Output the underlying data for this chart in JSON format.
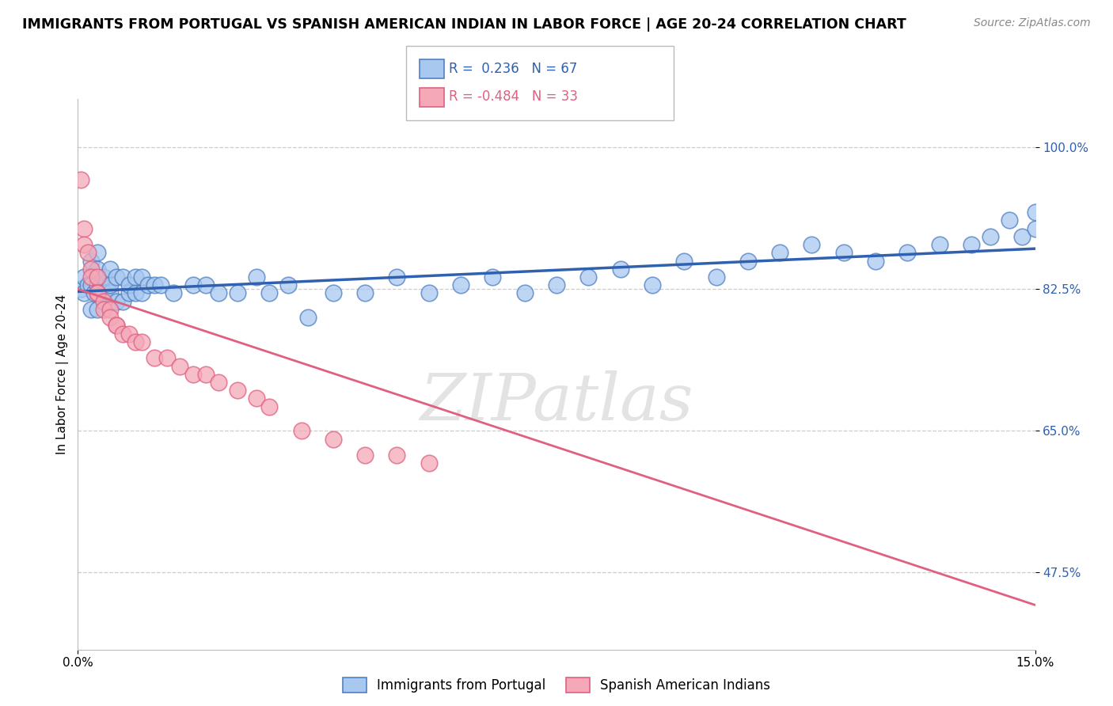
{
  "title": "IMMIGRANTS FROM PORTUGAL VS SPANISH AMERICAN INDIAN IN LABOR FORCE | AGE 20-24 CORRELATION CHART",
  "source_text": "Source: ZipAtlas.com",
  "ylabel": "In Labor Force | Age 20-24",
  "xlim": [
    0.0,
    0.15
  ],
  "ylim": [
    0.38,
    1.06
  ],
  "xtick_labels": [
    "0.0%",
    "15.0%"
  ],
  "ytick_labels": [
    "47.5%",
    "65.0%",
    "82.5%",
    "100.0%"
  ],
  "ytick_values": [
    0.475,
    0.65,
    0.825,
    1.0
  ],
  "xtick_values": [
    0.0,
    0.15
  ],
  "blue_R": 0.236,
  "blue_N": 67,
  "pink_R": -0.484,
  "pink_N": 33,
  "blue_color": "#A8C8F0",
  "pink_color": "#F4A8B8",
  "blue_edge_color": "#5080C0",
  "pink_edge_color": "#E06080",
  "blue_line_color": "#3060B0",
  "pink_line_color": "#E06080",
  "legend_label_blue": "Immigrants from Portugal",
  "legend_label_pink": "Spanish American Indians",
  "watermark": "ZIPatlas",
  "title_fontsize": 12.5,
  "axis_label_fontsize": 11,
  "tick_fontsize": 11,
  "blue_scatter_x": [
    0.0005,
    0.001,
    0.001,
    0.0015,
    0.002,
    0.002,
    0.002,
    0.0025,
    0.003,
    0.003,
    0.003,
    0.003,
    0.0035,
    0.004,
    0.004,
    0.004,
    0.005,
    0.005,
    0.005,
    0.006,
    0.006,
    0.007,
    0.007,
    0.008,
    0.008,
    0.009,
    0.009,
    0.01,
    0.01,
    0.011,
    0.012,
    0.013,
    0.015,
    0.018,
    0.02,
    0.022,
    0.025,
    0.028,
    0.03,
    0.033,
    0.036,
    0.04,
    0.045,
    0.05,
    0.055,
    0.06,
    0.065,
    0.07,
    0.075,
    0.08,
    0.085,
    0.09,
    0.095,
    0.1,
    0.105,
    0.11,
    0.115,
    0.12,
    0.125,
    0.13,
    0.135,
    0.14,
    0.143,
    0.146,
    0.148,
    0.15,
    0.15
  ],
  "blue_scatter_y": [
    0.825,
    0.82,
    0.84,
    0.83,
    0.8,
    0.83,
    0.86,
    0.82,
    0.8,
    0.83,
    0.85,
    0.87,
    0.83,
    0.82,
    0.84,
    0.82,
    0.82,
    0.83,
    0.85,
    0.81,
    0.84,
    0.81,
    0.84,
    0.82,
    0.83,
    0.82,
    0.84,
    0.82,
    0.84,
    0.83,
    0.83,
    0.83,
    0.82,
    0.83,
    0.83,
    0.82,
    0.82,
    0.84,
    0.82,
    0.83,
    0.79,
    0.82,
    0.82,
    0.84,
    0.82,
    0.83,
    0.84,
    0.82,
    0.83,
    0.84,
    0.85,
    0.83,
    0.86,
    0.84,
    0.86,
    0.87,
    0.88,
    0.87,
    0.86,
    0.87,
    0.88,
    0.88,
    0.89,
    0.91,
    0.89,
    0.9,
    0.92
  ],
  "pink_scatter_x": [
    0.0005,
    0.001,
    0.001,
    0.0015,
    0.002,
    0.002,
    0.003,
    0.003,
    0.003,
    0.004,
    0.004,
    0.005,
    0.005,
    0.006,
    0.006,
    0.007,
    0.008,
    0.009,
    0.01,
    0.012,
    0.014,
    0.016,
    0.018,
    0.02,
    0.022,
    0.025,
    0.028,
    0.03,
    0.035,
    0.04,
    0.045,
    0.05,
    0.055
  ],
  "pink_scatter_y": [
    0.96,
    0.9,
    0.88,
    0.87,
    0.85,
    0.84,
    0.84,
    0.82,
    0.82,
    0.81,
    0.8,
    0.8,
    0.79,
    0.78,
    0.78,
    0.77,
    0.77,
    0.76,
    0.76,
    0.74,
    0.74,
    0.73,
    0.72,
    0.72,
    0.71,
    0.7,
    0.69,
    0.68,
    0.65,
    0.64,
    0.62,
    0.62,
    0.61
  ],
  "blue_line_x0": 0.0,
  "blue_line_y0": 0.822,
  "blue_line_x1": 0.15,
  "blue_line_y1": 0.875,
  "pink_line_x0": 0.0,
  "pink_line_y0": 0.825,
  "pink_line_x1": 0.15,
  "pink_line_y1": 0.435
}
